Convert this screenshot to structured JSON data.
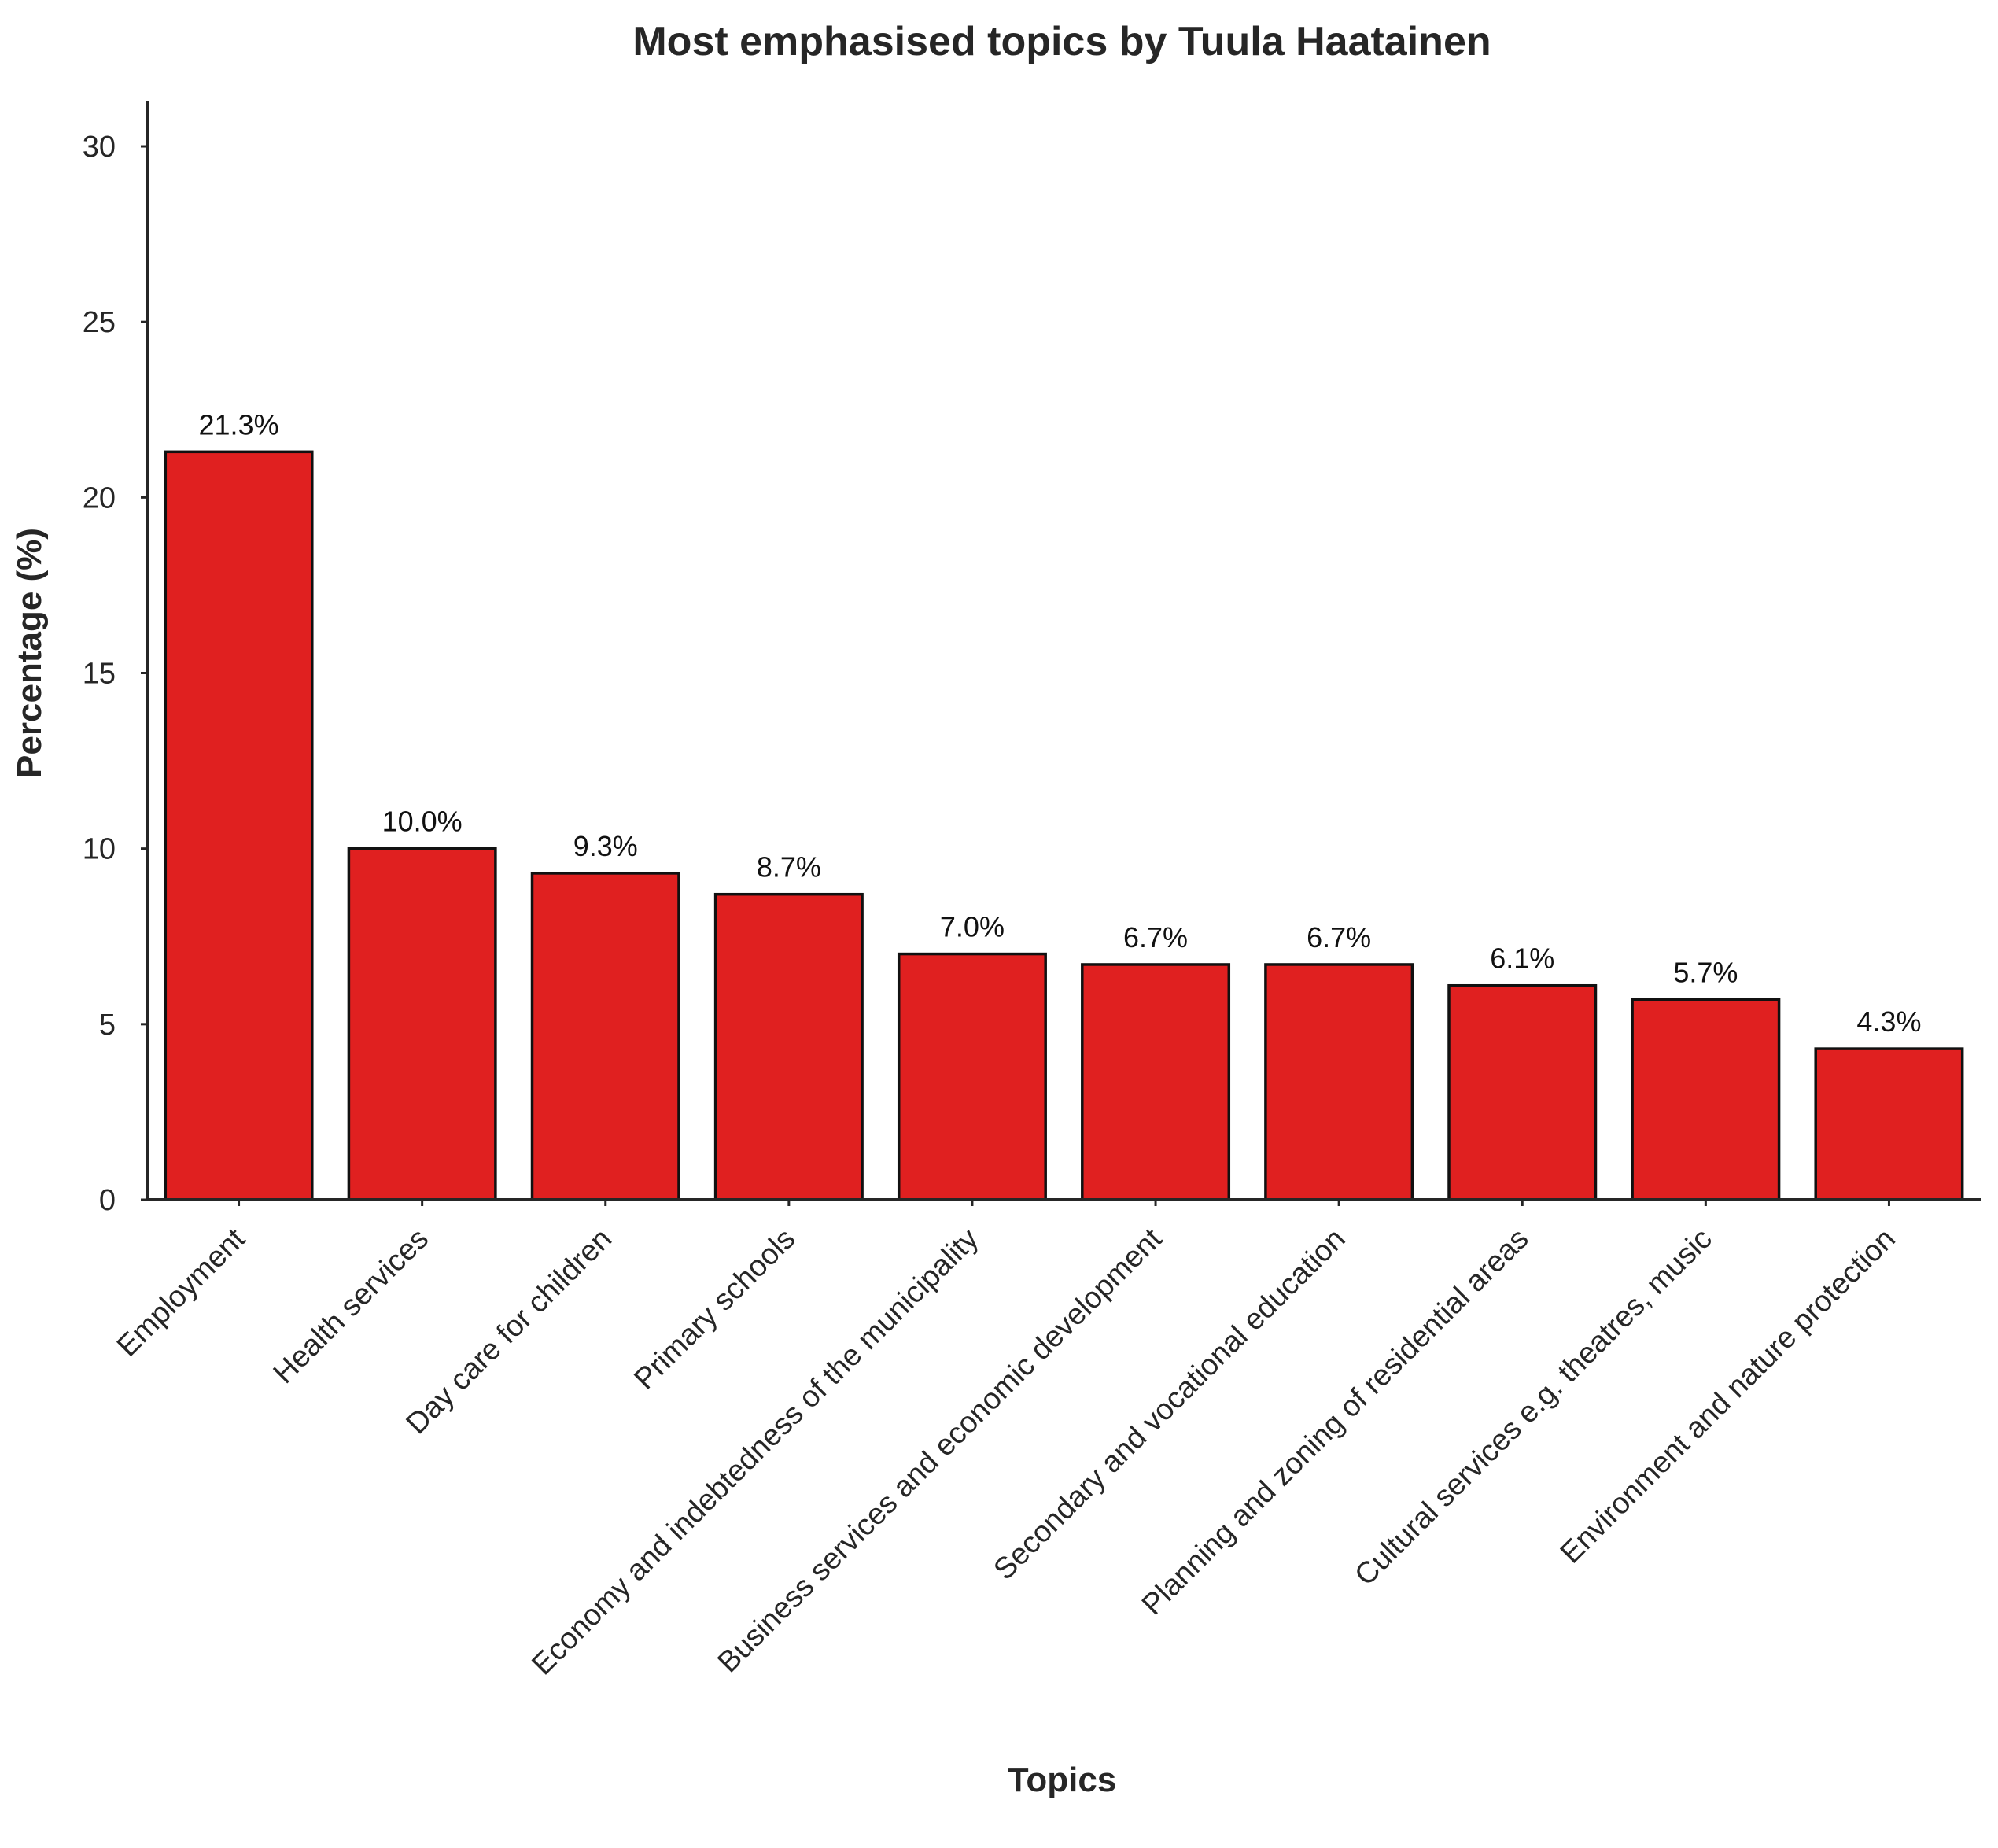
{
  "chart_data": {
    "type": "bar",
    "title": "Most emphasised topics by Tuula Haatainen",
    "xlabel": "Topics",
    "ylabel": "Percentage (%)",
    "categories": [
      "Employment",
      "Health services",
      "Day care for children",
      "Primary schools",
      "Economy and indebtedness of the municipality",
      "Business services and economic development",
      "Secondary and vocational education",
      "Planning and zoning of residential areas",
      "Cultural services e.g. theatres, music",
      "Environment and nature protection"
    ],
    "values": [
      21.3,
      10.0,
      9.3,
      8.7,
      7.0,
      6.7,
      6.7,
      6.1,
      5.7,
      4.3
    ],
    "value_labels": [
      "21.3%",
      "10.0%",
      "9.3%",
      "8.7%",
      "7.0%",
      "6.7%",
      "6.7%",
      "6.1%",
      "5.7%",
      "4.3%"
    ],
    "yticks": [
      "0",
      "5",
      "10",
      "15",
      "20",
      "25",
      "30"
    ],
    "ytick_values": [
      0,
      5,
      10,
      15,
      20,
      25,
      30
    ],
    "ylim": [
      0,
      31.3
    ],
    "grid": false,
    "legend": "none",
    "colors": {
      "bar_fill": "#e02020",
      "bar_edge": "#111111",
      "axis": "#262626",
      "text": "#262626"
    }
  }
}
